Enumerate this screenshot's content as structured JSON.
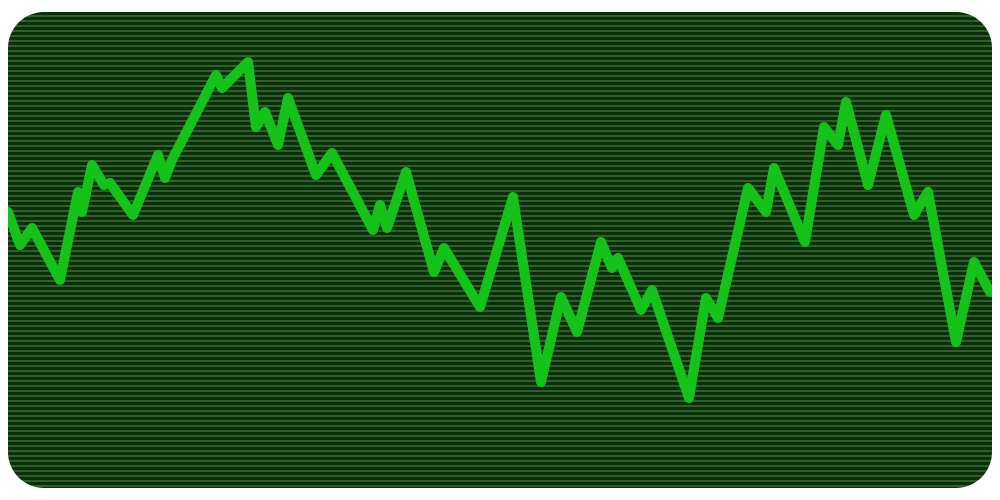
{
  "chart_data": {
    "type": "line",
    "x": [
      8,
      20,
      32,
      60,
      78,
      82,
      92,
      104,
      110,
      133,
      158,
      165,
      172,
      216,
      222,
      248,
      256,
      265,
      278,
      288,
      316,
      332,
      373,
      380,
      387,
      406,
      434,
      444,
      480,
      513,
      541,
      561,
      577,
      601,
      612,
      618,
      641,
      652,
      689,
      706,
      718,
      748,
      766,
      774,
      805,
      824,
      838,
      846,
      868,
      886,
      914,
      928,
      956,
      974,
      990
    ],
    "series": [
      {
        "color": "#14c21a",
        "values": [
          276,
          243,
          260,
          208,
          296,
          276,
          323,
          303,
          305,
          273,
          333,
          310,
          328,
          413,
          400,
          426,
          361,
          376,
          343,
          390,
          313,
          335,
          258,
          283,
          260,
          316,
          216,
          240,
          181,
          291,
          106,
          191,
          156,
          246,
          220,
          230,
          178,
          198,
          90,
          190,
          170,
          300,
          276,
          320,
          246,
          361,
          343,
          386,
          303,
          373,
          273,
          296,
          146,
          226,
          196
        ]
      }
    ],
    "xlim": [
      8,
      992
    ],
    "ylim": [
      0,
      476
    ]
  }
}
